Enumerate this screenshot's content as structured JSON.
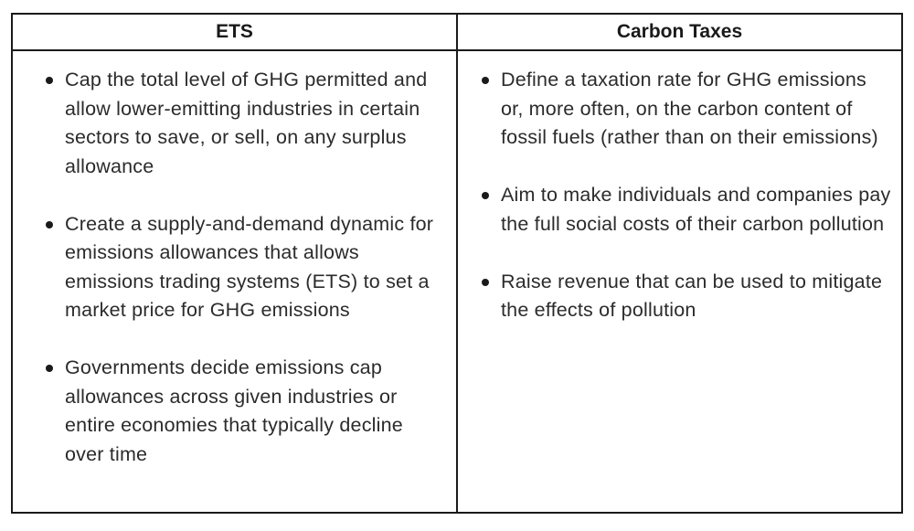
{
  "table": {
    "headers": {
      "left": "ETS",
      "right": "Carbon Taxes"
    },
    "ets_points": [
      "Cap the total level of GHG permitted and allow lower-emitting industries in certain sectors to save, or sell, on any surplus allowance",
      "Create a supply-and-demand dynamic for emissions allowances that allows emissions trading systems (ETS) to set a market price for GHG emissions",
      "Governments decide emissions cap allowances across given industries or entire economies that typically decline over time"
    ],
    "carbon_tax_points": [
      "Define a taxation rate for GHG emissions or, more often, on the carbon content of fossil fuels (rather than on their emissions)",
      "Aim to make individuals and companies pay the full social costs of their carbon pollution",
      "Raise revenue that can be used to mitigate the effects of pollution"
    ]
  }
}
